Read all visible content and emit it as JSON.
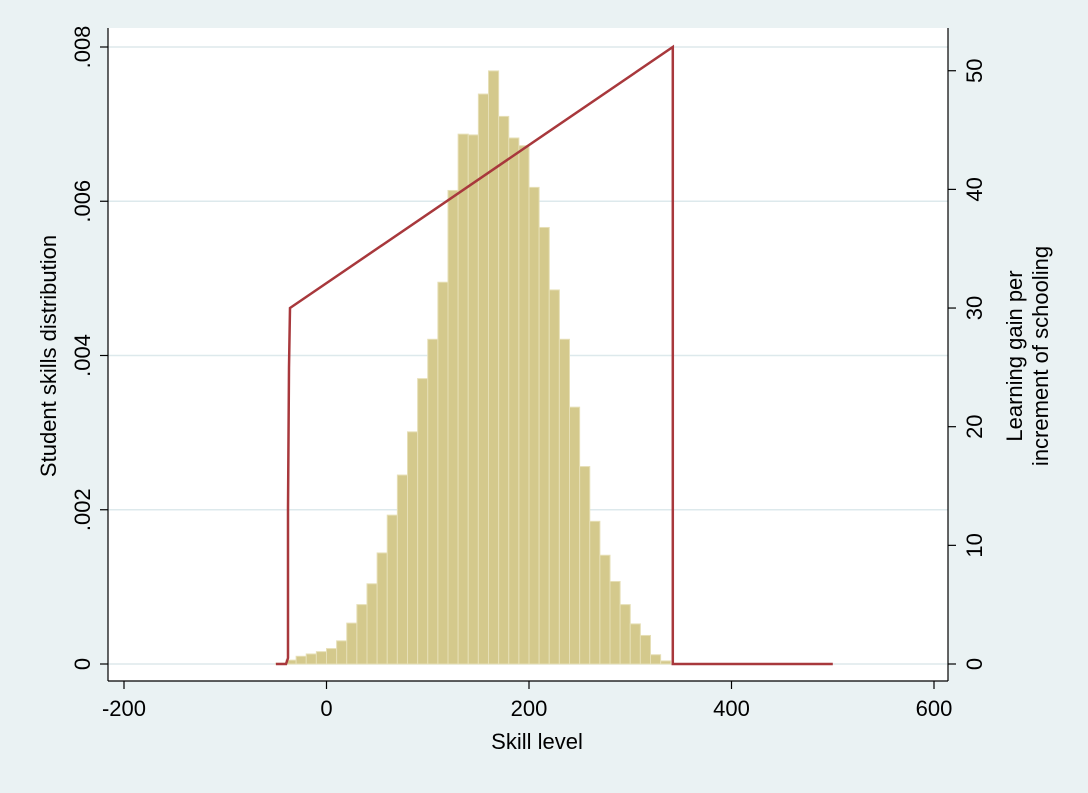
{
  "chart_data": {
    "type": "bar",
    "title": "",
    "xlabel": "Skill level",
    "ylabel_left": "Student skills distribution",
    "ylabel_right": [
      "Learning gain per",
      "increment of schooling"
    ],
    "xlim": [
      -200,
      600
    ],
    "ylim_left": [
      0,
      0.008
    ],
    "ylim_right": [
      0,
      52
    ],
    "x_ticks": [
      -200,
      0,
      200,
      400,
      600
    ],
    "x_tick_labels": [
      "-200",
      "0",
      "200",
      "400",
      "600"
    ],
    "y_left_ticks": [
      0,
      0.002,
      0.004,
      0.006,
      0.008
    ],
    "y_left_tick_labels": [
      "0",
      ".002",
      ".004",
      ".006",
      ".008"
    ],
    "y_right_ticks": [
      0,
      10,
      20,
      30,
      40,
      50
    ],
    "y_right_tick_labels": [
      "0",
      "10",
      "20",
      "30",
      "40",
      "50"
    ],
    "grid": true,
    "colors": {
      "background": "#eaf2f3",
      "plot_area": "#ffffff",
      "bars": "#d4c98c",
      "bar_edge": "#e6dfb6",
      "line": "#a8383c",
      "grid": "#dde9ec"
    },
    "histogram": {
      "name": "Student skills distribution",
      "axis": "left",
      "bin_width": 10,
      "bin_starts": [
        -50,
        -40,
        -30,
        -20,
        -10,
        0,
        10,
        20,
        30,
        40,
        50,
        60,
        70,
        80,
        90,
        100,
        110,
        120,
        130,
        140,
        150,
        160,
        170,
        180,
        190,
        200,
        210,
        220,
        230,
        240,
        250,
        260,
        270,
        280,
        290,
        300,
        310,
        320,
        330
      ],
      "values": [
        1e-05,
        5e-05,
        0.0001,
        0.00013,
        0.00016,
        0.0002,
        0.0003,
        0.00053,
        0.00077,
        0.00104,
        0.00144,
        0.00193,
        0.00245,
        0.00301,
        0.0037,
        0.00421,
        0.00495,
        0.00614,
        0.00687,
        0.00686,
        0.00739,
        0.00769,
        0.0071,
        0.00682,
        0.00672,
        0.00618,
        0.00566,
        0.00485,
        0.00421,
        0.00333,
        0.00256,
        0.00185,
        0.00141,
        0.00107,
        0.00077,
        0.00052,
        0.00037,
        0.00012,
        4e-05
      ]
    },
    "line": {
      "name": "Learning gain per increment of schooling",
      "axis": "right",
      "points": [
        [
          -50,
          0
        ],
        [
          -40,
          0
        ],
        [
          -38,
          0.5
        ],
        [
          -38,
          13
        ],
        [
          -37,
          25
        ],
        [
          -36,
          30
        ],
        [
          342,
          52
        ],
        [
          342,
          0
        ],
        [
          500,
          0
        ]
      ]
    }
  }
}
